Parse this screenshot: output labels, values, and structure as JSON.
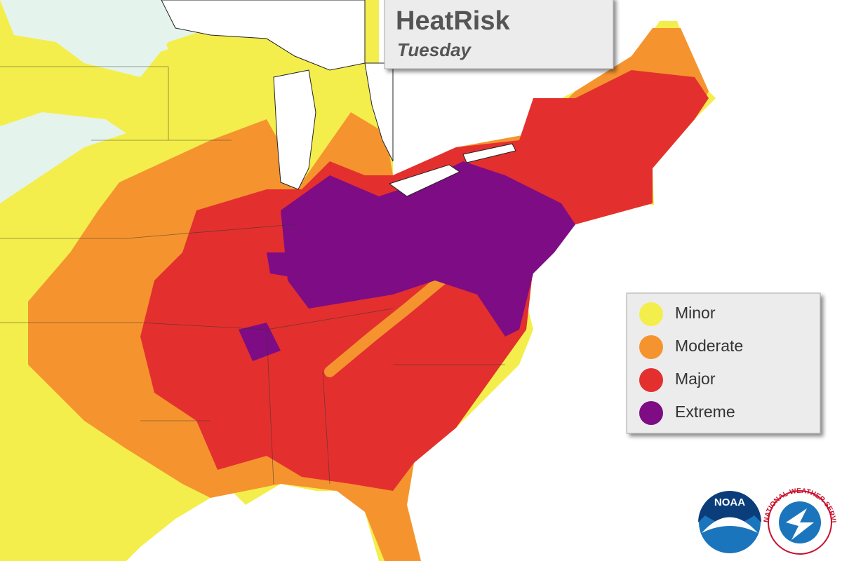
{
  "title": "HeatRisk",
  "subtitle": "Tuesday",
  "legend": {
    "items": [
      {
        "label": "Minor",
        "color": "#f4ee4c"
      },
      {
        "label": "Moderate",
        "color": "#f5942f"
      },
      {
        "label": "Major",
        "color": "#e3302e"
      },
      {
        "label": "Extreme",
        "color": "#7e0c85"
      }
    ]
  },
  "logos": [
    {
      "text": "NOAA"
    },
    {
      "text": "NATIONAL WEATHER SERVICE"
    }
  ]
}
